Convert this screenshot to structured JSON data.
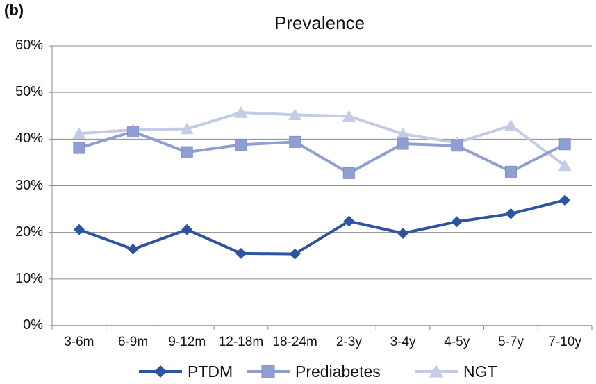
{
  "panel_label": "(b)",
  "chart_data": {
    "type": "line",
    "title": "Prevalence",
    "xlabel": "",
    "ylabel": "",
    "categories": [
      "3-6m",
      "6-9m",
      "9-12m",
      "12-18m",
      "18-24m",
      "2-3y",
      "3-4y",
      "4-5y",
      "5-7y",
      "7-10y"
    ],
    "ylim": [
      0,
      60
    ],
    "yticks": [
      "0%",
      "10%",
      "20%",
      "30%",
      "40%",
      "50%",
      "60%"
    ],
    "grid": true,
    "legend_position": "bottom",
    "series": [
      {
        "name": "PTDM",
        "color": "#2e54a0",
        "marker": "diamond",
        "values": [
          20.6,
          16.4,
          20.6,
          15.5,
          15.4,
          22.4,
          19.8,
          22.3,
          24.0,
          26.9
        ]
      },
      {
        "name": "Prediabetes",
        "color": "#8f9fd1",
        "marker": "square",
        "values": [
          38.1,
          41.6,
          37.2,
          38.8,
          39.4,
          32.7,
          39.0,
          38.6,
          33.0,
          38.9
        ]
      },
      {
        "name": "NGT",
        "color": "#c3cbe6",
        "marker": "triangle",
        "values": [
          41.2,
          42.0,
          42.2,
          45.7,
          45.2,
          44.9,
          41.1,
          39.2,
          42.9,
          34.3
        ]
      }
    ]
  }
}
